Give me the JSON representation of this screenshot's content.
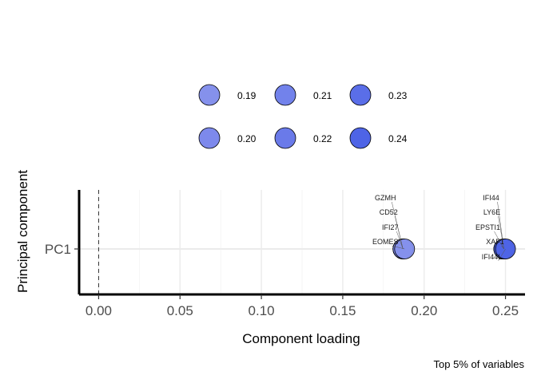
{
  "chart_data": {
    "type": "scatter",
    "xlabel": "Component loading",
    "ylabel": "Principal component",
    "caption": "Top 5% of variables",
    "xlim": [
      -0.012,
      0.262
    ],
    "x_ticks": [
      0.0,
      0.05,
      0.1,
      0.15,
      0.2,
      0.25
    ],
    "x_tick_labels": [
      "0.00",
      "0.05",
      "0.10",
      "0.15",
      "0.20",
      "0.25"
    ],
    "y_categories": [
      "PC1"
    ],
    "grid": true,
    "reference_line_x": 0,
    "legend": {
      "placement": "top",
      "entries": [
        {
          "label": "0.19",
          "color": "#8591ec"
        },
        {
          "label": "0.21",
          "color": "#7282eb"
        },
        {
          "label": "0.23",
          "color": "#5a6ee8"
        },
        {
          "label": "0.20",
          "color": "#7d89ec"
        },
        {
          "label": "0.22",
          "color": "#6a7ae9"
        },
        {
          "label": "0.24",
          "color": "#4e64e6"
        }
      ]
    },
    "points": [
      {
        "label": "GZMH",
        "x": 0.187,
        "y": "PC1",
        "color": "#7f8bec"
      },
      {
        "label": "CD52",
        "x": 0.187,
        "y": "PC1",
        "color": "#7f8bec"
      },
      {
        "label": "IFI27",
        "x": 0.187,
        "y": "PC1",
        "color": "#7f8bec"
      },
      {
        "label": "EOMES",
        "x": 0.188,
        "y": "PC1",
        "color": "#8591ec"
      },
      {
        "label": "IFI44",
        "x": 0.249,
        "y": "PC1",
        "color": "#4e64e6"
      },
      {
        "label": "LY6E",
        "x": 0.249,
        "y": "PC1",
        "color": "#4e64e6"
      },
      {
        "label": "EPSTI1",
        "x": 0.249,
        "y": "PC1",
        "color": "#4e64e6"
      },
      {
        "label": "XAF1",
        "x": 0.249,
        "y": "PC1",
        "color": "#4e64e6"
      },
      {
        "label": "IFI44L",
        "x": 0.25,
        "y": "PC1",
        "color": "#4e64e6"
      }
    ]
  }
}
